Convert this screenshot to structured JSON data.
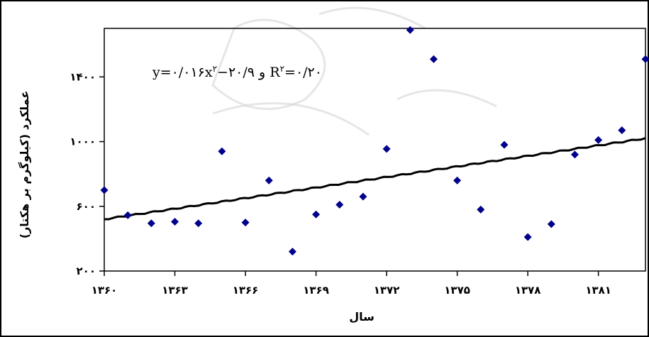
{
  "chart_data": {
    "type": "scatter",
    "title": "",
    "xlabel": "سال",
    "ylabel": "عملکرد (کیلوگرم بر هکتار)",
    "xlim": [
      1360,
      1383
    ],
    "ylim": [
      200,
      1700
    ],
    "x_ticks": [
      1360,
      1363,
      1366,
      1369,
      1372,
      1375,
      1378,
      1381
    ],
    "x_tick_labels": [
      "۱۳۶۰",
      "۱۳۶۳",
      "۱۳۶۶",
      "۱۳۶۹",
      "۱۳۷۲",
      "۱۳۷۵",
      "۱۳۷۸",
      "۱۳۸۱"
    ],
    "y_ticks": [
      200,
      600,
      1000,
      1400
    ],
    "y_tick_labels": [
      "۲۰۰",
      "۶۰۰",
      "۱۰۰۰",
      "۱۴۰۰"
    ],
    "grid": false,
    "legend": "none",
    "equation": "y=۰/۰۱۶x^۲−۲۰/۹ و R^۲=۰/۲۰",
    "marker_color": "#00008B",
    "trend_color": "#000000",
    "series": [
      {
        "x": [
          1360,
          1361,
          1362,
          1363,
          1364,
          1365,
          1366,
          1367,
          1368,
          1369,
          1370,
          1371,
          1372,
          1373,
          1374,
          1375,
          1376,
          1377,
          1378,
          1379,
          1380,
          1381,
          1382,
          1383
        ],
        "values": [
          700,
          545,
          495,
          505,
          495,
          940,
          500,
          760,
          320,
          550,
          610,
          660,
          955,
          1690,
          1510,
          760,
          580,
          980,
          410,
          490,
          920,
          1010,
          1070,
          1510
        ]
      }
    ],
    "trendline": {
      "x": [
        1360,
        1383
      ],
      "values": [
        520,
        1020
      ]
    }
  }
}
